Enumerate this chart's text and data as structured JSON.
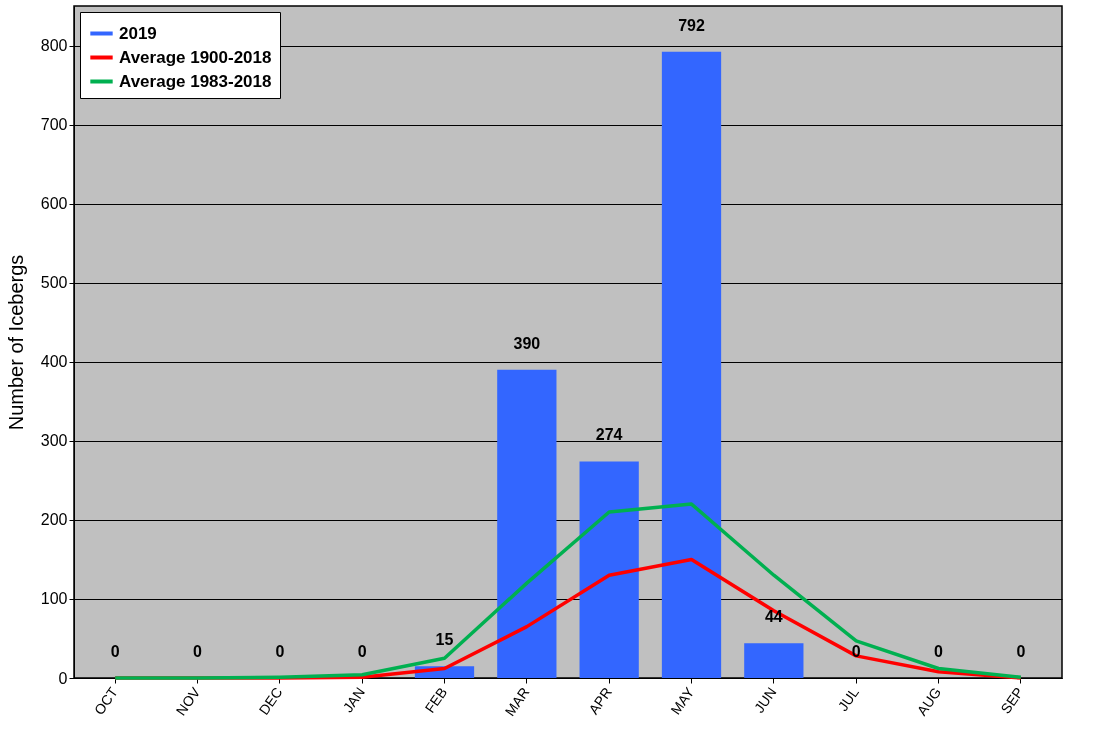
{
  "chart_data": {
    "type": "bar",
    "ylabel": "Number of Icebergs",
    "categories": [
      "OCT",
      "NOV",
      "DEC",
      "JAN",
      "FEB",
      "MAR",
      "APR",
      "MAY",
      "JUN",
      "JUL",
      "AUG",
      "SEP"
    ],
    "series": [
      {
        "name": "2019",
        "color": "#3366ff",
        "values": [
          0,
          0,
          0,
          0,
          15,
          390,
          274,
          792,
          44,
          0,
          0,
          0
        ],
        "value_labels": [
          "0",
          "0",
          "0",
          "0",
          "15",
          "390",
          "274",
          "792",
          "44",
          "0",
          "0",
          "0"
        ]
      },
      {
        "name": "Average 1900-2018",
        "type": "line",
        "color": "#ff0000",
        "values": [
          0,
          0,
          0,
          1,
          12,
          65,
          130,
          150,
          85,
          28,
          8,
          0
        ]
      },
      {
        "name": "Average 1983-2018",
        "type": "line",
        "color": "#00b050",
        "values": [
          0,
          0,
          1,
          4,
          25,
          120,
          210,
          220,
          130,
          47,
          12,
          1
        ]
      }
    ],
    "ylim": [
      0,
      850
    ],
    "yticks": [
      0,
      100,
      200,
      300,
      400,
      500,
      600,
      700,
      800
    ],
    "grid": "y",
    "legend": "top left"
  }
}
